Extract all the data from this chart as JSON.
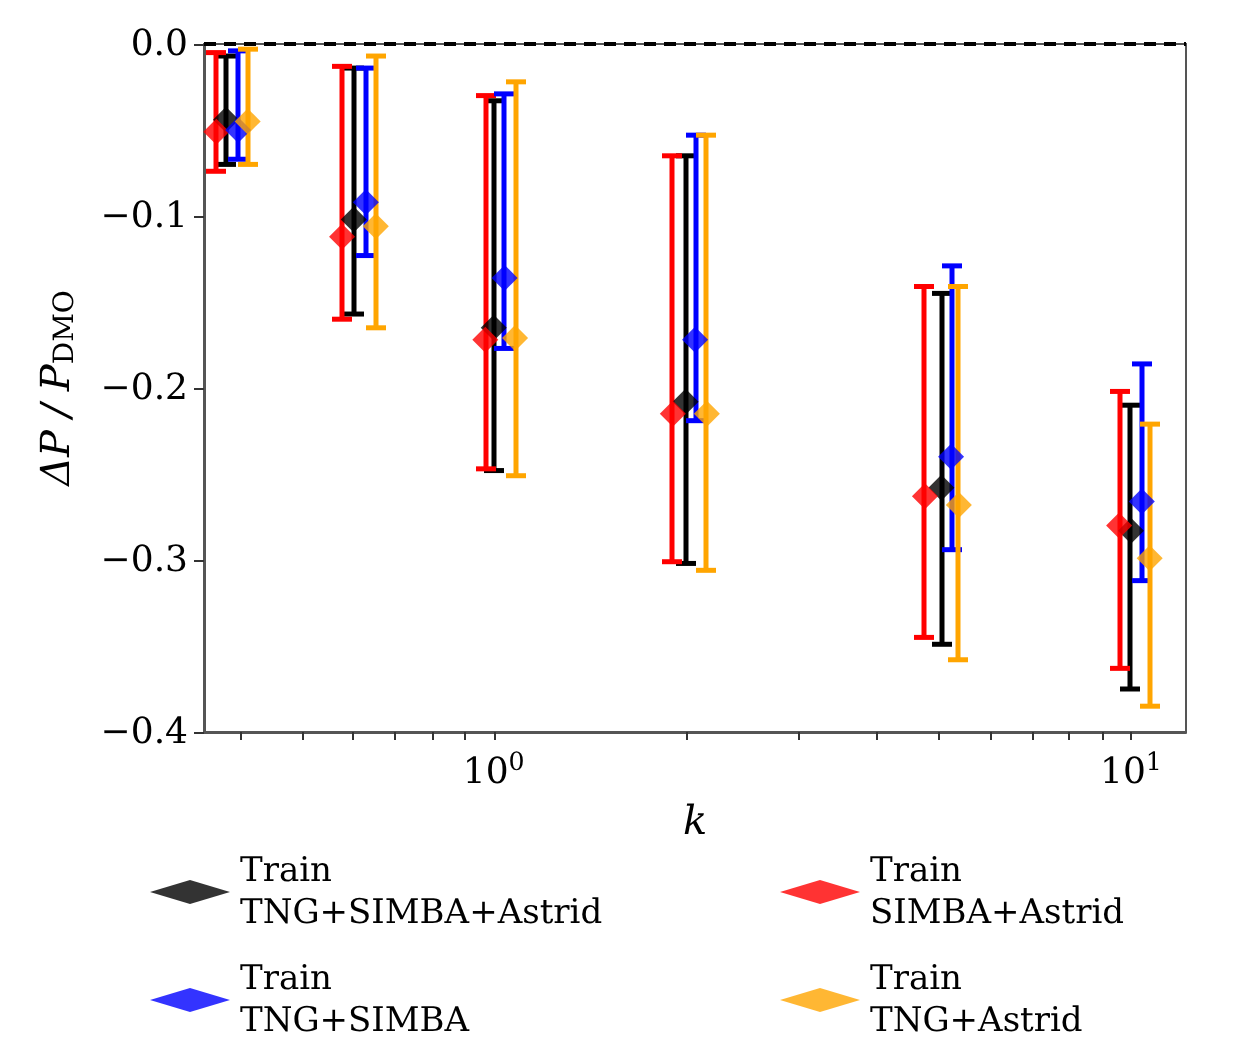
{
  "chart_data": {
    "type": "scatter",
    "xlabel": "k",
    "ylabel": "ΔP / P$_{DMO}$",
    "log": "x",
    "grid": false,
    "legend": "bottom",
    "marker": "diamond",
    "xlim": [
      0.351,
      12.2
    ],
    "ylim": [
      -0.4,
      0.0
    ],
    "xticks": [
      {
        "value": 0.4,
        "label": null
      },
      {
        "value": 0.5,
        "label": null
      },
      {
        "value": 0.6,
        "label": null
      },
      {
        "value": 0.7,
        "label": null
      },
      {
        "value": 0.8,
        "label": null
      },
      {
        "value": 0.9,
        "label": null
      },
      {
        "value": 1,
        "label": "10$^{0}$"
      },
      {
        "value": 2,
        "label": null
      },
      {
        "value": 3,
        "label": null
      },
      {
        "value": 4,
        "label": null
      },
      {
        "value": 5,
        "label": null
      },
      {
        "value": 6,
        "label": null
      },
      {
        "value": 7,
        "label": null
      },
      {
        "value": 8,
        "label": null
      },
      {
        "value": 9,
        "label": null
      },
      {
        "value": 10,
        "label": "10$^{1}$"
      }
    ],
    "yticks": [
      {
        "value": -0.4,
        "label": "−0.4"
      },
      {
        "value": -0.3,
        "label": "−0.3"
      },
      {
        "value": -0.2,
        "label": "−0.2"
      },
      {
        "value": -0.1,
        "label": "−0.1"
      },
      {
        "value": 0.0,
        "label": "0.0"
      }
    ],
    "ref_lines": [
      {
        "axis": "y",
        "value": 0.0,
        "color": "#000000",
        "line_style": "dashed"
      }
    ],
    "series": [
      {
        "name": "Train\nTNG+SIMBA+Astrid",
        "color": "#000000",
        "x": [
          0.38,
          0.603,
          1.0,
          2.0,
          5.04,
          10.0
        ],
        "values": [
          -0.044,
          -0.102,
          -0.165,
          -0.208,
          -0.258,
          -0.283
        ],
        "errors": [
          [
            -0.07,
            -0.007
          ],
          [
            -0.157,
            -0.014
          ],
          [
            -0.248,
            -0.033
          ],
          [
            -0.302,
            -0.065
          ],
          [
            -0.349,
            -0.145
          ],
          [
            -0.375,
            -0.21
          ]
        ]
      },
      {
        "name": "Train\nSIMBA+Astrid",
        "color": "#ff0000",
        "x": [
          0.367,
          0.578,
          0.97,
          1.91,
          4.75,
          9.58
        ],
        "values": [
          -0.051,
          -0.112,
          -0.172,
          -0.215,
          -0.263,
          -0.28
        ],
        "errors": [
          [
            -0.074,
            -0.005
          ],
          [
            -0.16,
            -0.013
          ],
          [
            -0.247,
            -0.03
          ],
          [
            -0.301,
            -0.065
          ],
          [
            -0.345,
            -0.141
          ],
          [
            -0.363,
            -0.202
          ]
        ]
      },
      {
        "name": "Train\nTNG+SIMBA",
        "color": "#0000ff",
        "x": [
          0.397,
          0.63,
          1.04,
          2.07,
          5.22,
          10.4
        ],
        "values": [
          -0.05,
          -0.092,
          -0.136,
          -0.172,
          -0.24,
          -0.266
        ],
        "errors": [
          [
            -0.067,
            -0.004
          ],
          [
            -0.123,
            -0.014
          ],
          [
            -0.177,
            -0.029
          ],
          [
            -0.219,
            -0.053
          ],
          [
            -0.294,
            -0.129
          ],
          [
            -0.312,
            -0.186
          ]
        ]
      },
      {
        "name": "Train\nTNG+Astrid",
        "color": "#ffa500",
        "x": [
          0.411,
          0.653,
          1.08,
          2.16,
          5.37,
          10.7
        ],
        "values": [
          -0.045,
          -0.106,
          -0.171,
          -0.215,
          -0.268,
          -0.299
        ],
        "errors": [
          [
            -0.07,
            -0.003
          ],
          [
            -0.165,
            -0.007
          ],
          [
            -0.251,
            -0.022
          ],
          [
            -0.306,
            -0.053
          ],
          [
            -0.358,
            -0.141
          ],
          [
            -0.385,
            -0.221
          ]
        ]
      }
    ]
  }
}
